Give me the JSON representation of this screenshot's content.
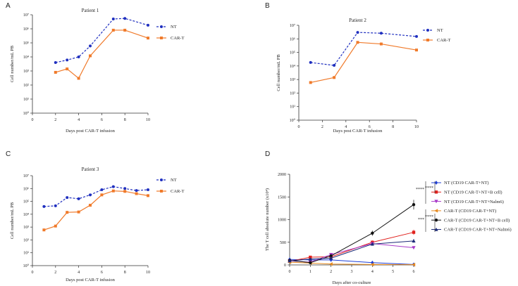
{
  "colors": {
    "nt": "#1f2fbf",
    "cart": "#f07a2a",
    "axis": "#333333",
    "d_series": [
      "#1f3fd6",
      "#e0201c",
      "#a839c9",
      "#e68a1f",
      "#111111",
      "#1c2a78"
    ]
  },
  "chart_data": [
    {
      "panel": "A",
      "type": "line",
      "title": "Patient 1",
      "xlabel": "Days post CAR-T infusion",
      "ylabel": "Cell number/mL PB",
      "xlim": [
        0,
        10
      ],
      "xticks": [
        "0",
        "2",
        "4",
        "6",
        "8",
        "10"
      ],
      "yscale": "log",
      "ylim": [
        1,
        10000000
      ],
      "yticks": [
        "10⁰",
        "10¹",
        "10²",
        "10³",
        "10⁴",
        "10⁵",
        "10⁶",
        "10⁷"
      ],
      "series": [
        {
          "name": "NT",
          "style": "dashed",
          "marker": "circle",
          "x": [
            2,
            3,
            4,
            5,
            7,
            8,
            10
          ],
          "y": [
            4000,
            6000,
            10000,
            60000,
            5000000,
            5500000,
            1800000
          ]
        },
        {
          "name": "CAR-T",
          "style": "solid",
          "marker": "square",
          "x": [
            2,
            3,
            4,
            5,
            7,
            8,
            10
          ],
          "y": [
            800,
            1400,
            300,
            12000,
            800000,
            800000,
            220000
          ]
        }
      ]
    },
    {
      "panel": "B",
      "type": "line",
      "title": "Patient 2",
      "xlabel": "Days post CAR-T infusion",
      "ylabel": "Cell number/mL PB",
      "xlim": [
        0,
        10
      ],
      "xticks": [
        "0",
        "2",
        "4",
        "6",
        "8",
        "10"
      ],
      "yscale": "log",
      "ylim": [
        1,
        10000000
      ],
      "yticks": [
        "10⁰",
        "10¹",
        "10²",
        "10³",
        "10⁴",
        "10⁵",
        "10⁶",
        "10⁷"
      ],
      "series": [
        {
          "name": "NT",
          "style": "dashed",
          "marker": "circle",
          "x": [
            1,
            3,
            5,
            7,
            10
          ],
          "y": [
            18000,
            11000,
            3000000,
            2600000,
            1500000
          ]
        },
        {
          "name": "CAR-T",
          "style": "solid",
          "marker": "square",
          "x": [
            1,
            3,
            5,
            7,
            10
          ],
          "y": [
            600,
            1400,
            550000,
            420000,
            150000
          ]
        }
      ]
    },
    {
      "panel": "C",
      "type": "line",
      "title": "Patient 3",
      "xlabel": "Days post CAR-T infusion",
      "ylabel": "Cell number/mL PB",
      "xlim": [
        0,
        10
      ],
      "xticks": [
        "0",
        "2",
        "4",
        "6",
        "8",
        "10"
      ],
      "yscale": "log",
      "ylim": [
        1,
        10000000
      ],
      "yticks": [
        "10⁰",
        "10¹",
        "10²",
        "10³",
        "10⁴",
        "10⁵",
        "10⁶",
        "10⁷"
      ],
      "series": [
        {
          "name": "NT",
          "style": "dashed",
          "marker": "circle",
          "x": [
            1,
            2,
            3,
            4,
            5,
            6,
            7,
            8,
            9,
            10
          ],
          "y": [
            40000,
            45000,
            200000,
            160000,
            320000,
            800000,
            1400000,
            1000000,
            700000,
            800000
          ]
        },
        {
          "name": "CAR-T",
          "style": "solid",
          "marker": "square",
          "x": [
            1,
            2,
            3,
            4,
            5,
            6,
            7,
            8,
            9,
            10
          ],
          "y": [
            600,
            1200,
            14000,
            15000,
            50000,
            320000,
            650000,
            600000,
            400000,
            280000
          ]
        }
      ]
    },
    {
      "panel": "D",
      "type": "line",
      "title": "",
      "xlabel": "Days after co-culture",
      "ylabel": "The T cell absolute number (x10⁴)",
      "xlim": [
        0,
        6
      ],
      "xticks": [
        "0",
        "1",
        "2",
        "3",
        "4",
        "5",
        "6"
      ],
      "ylim": [
        0,
        2000
      ],
      "yticks": [
        "0",
        "500",
        "1000",
        "1500",
        "2000"
      ],
      "significance": [
        "****",
        "****",
        "***",
        "****"
      ],
      "series": [
        {
          "name": "NT (CD19 CAR-T+NT)",
          "marker": "diamond",
          "x": [
            0,
            1,
            2,
            4,
            6
          ],
          "y": [
            120,
            110,
            110,
            50,
            10
          ]
        },
        {
          "name": "NT (CD19 CAR-T+NT+B cell)",
          "marker": "square",
          "x": [
            0,
            1,
            2,
            4,
            6
          ],
          "y": [
            80,
            170,
            180,
            500,
            720
          ]
        },
        {
          "name": "NT (CD19 CAR-T+NT+Nalm6)",
          "marker": "triangle-down",
          "x": [
            0,
            1,
            2,
            4,
            6
          ],
          "y": [
            90,
            60,
            230,
            470,
            380
          ]
        },
        {
          "name": "CAR-T (CD19 CAR-T+NT)",
          "marker": "triangle-left",
          "x": [
            0,
            1,
            2,
            4,
            6
          ],
          "y": [
            60,
            40,
            20,
            10,
            5
          ]
        },
        {
          "name": "CAR-T (CD19 CAR-T+NT+B cell)",
          "marker": "circle",
          "x": [
            0,
            1,
            2,
            4,
            6
          ],
          "y": [
            100,
            50,
            200,
            700,
            1330
          ]
        },
        {
          "name": "CAR-T (CD19 CAR-T+NT+Nalm6)",
          "marker": "triangle-up",
          "x": [
            0,
            1,
            2,
            4,
            6
          ],
          "y": [
            90,
            130,
            150,
            460,
            530
          ]
        }
      ]
    }
  ]
}
